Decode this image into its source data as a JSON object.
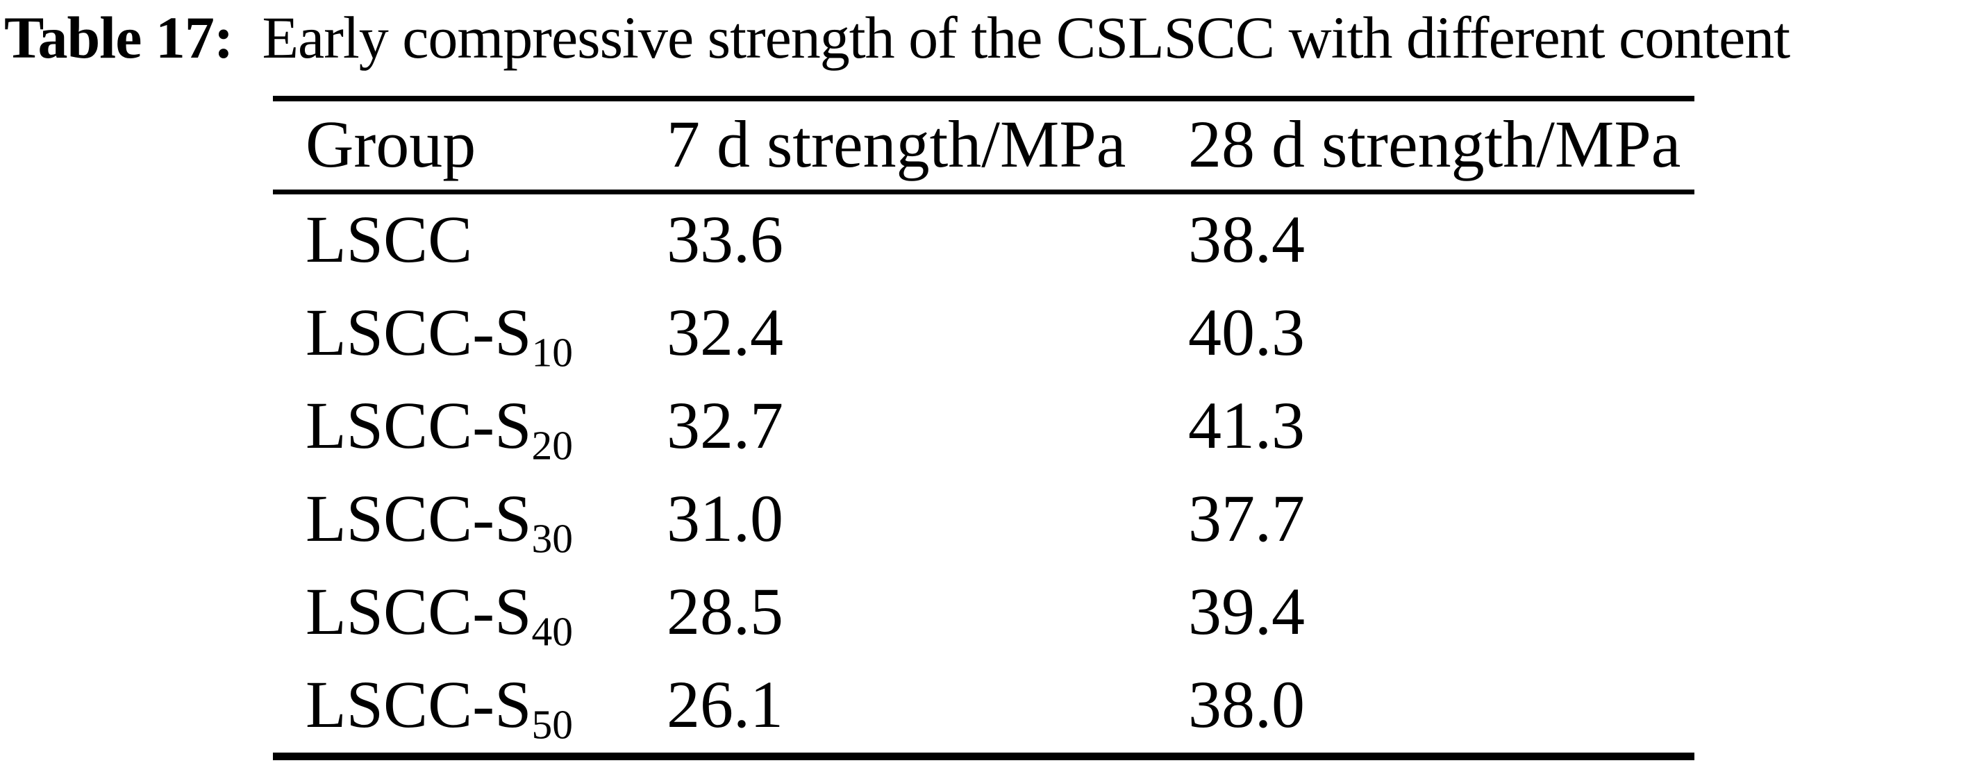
{
  "title": {
    "label": "Table 17:",
    "text": "Early compressive strength of the CSLSCC with different content"
  },
  "table": {
    "columns": [
      "Group",
      "7 d strength/MPa",
      "28 d strength/MPa"
    ],
    "rows": [
      {
        "group_base": "LSCC",
        "group_sub": "",
        "d7": "33.6",
        "d28": "38.4"
      },
      {
        "group_base": "LSCC-S",
        "group_sub": "10",
        "d7": "32.4",
        "d28": "40.3"
      },
      {
        "group_base": "LSCC-S",
        "group_sub": "20",
        "d7": "32.7",
        "d28": "41.3"
      },
      {
        "group_base": "LSCC-S",
        "group_sub": "30",
        "d7": "31.0",
        "d28": "37.7"
      },
      {
        "group_base": "LSCC-S",
        "group_sub": "40",
        "d7": "28.5",
        "d28": "39.4"
      },
      {
        "group_base": "LSCC-S",
        "group_sub": "50",
        "d7": "26.1",
        "d28": "38.0"
      }
    ]
  },
  "chart_data": {
    "type": "table",
    "title": "Table 17: Early compressive strength of the CSLSCC with different content",
    "columns": [
      "Group",
      "7 d strength/MPa",
      "28 d strength/MPa"
    ],
    "rows": [
      [
        "LSCC",
        33.6,
        38.4
      ],
      [
        "LSCC-S10",
        32.4,
        40.3
      ],
      [
        "LSCC-S20",
        32.7,
        41.3
      ],
      [
        "LSCC-S30",
        31.0,
        37.7
      ],
      [
        "LSCC-S40",
        28.5,
        39.4
      ],
      [
        "LSCC-S50",
        26.1,
        38.0
      ]
    ]
  },
  "colors": {
    "background": "#ffffff",
    "text": "#000000",
    "rule": "#000000"
  }
}
